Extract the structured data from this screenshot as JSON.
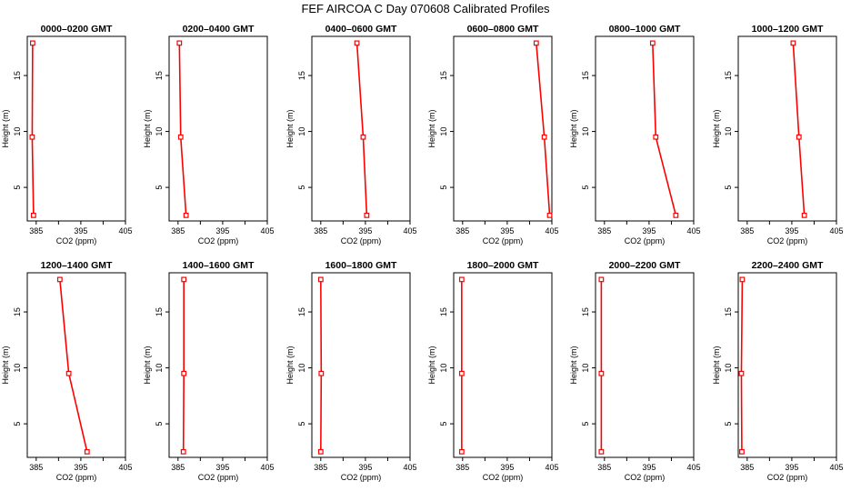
{
  "figure_title": "FEF AIRCOA C  Day 070608  Calibrated Profiles",
  "colors": {
    "series": "#ff0000",
    "axes": "#000000"
  },
  "chart_data": [
    {
      "type": "line",
      "title": "0000–0200 GMT",
      "xlabel": "CO2 (ppm)",
      "ylabel": "Height (m)",
      "xlim": [
        383,
        405
      ],
      "ylim": [
        2,
        18.5
      ],
      "xticks": [
        385,
        395,
        405
      ],
      "xtick_labels": [
        "385",
        "395",
        "405"
      ],
      "yticks": [
        5,
        10,
        15
      ],
      "ytick_labels": [
        "5",
        "10",
        "15"
      ],
      "series": [
        {
          "x": [
            384.2,
            384.1,
            384.4
          ],
          "y": [
            17.9,
            9.5,
            2.5
          ]
        }
      ]
    },
    {
      "type": "line",
      "title": "0200–0400 GMT",
      "xlabel": "CO2 (ppm)",
      "ylabel": "Height (m)",
      "xlim": [
        383,
        405
      ],
      "ylim": [
        2,
        18.5
      ],
      "xticks": [
        385,
        395,
        405
      ],
      "xtick_labels": [
        "385",
        "395",
        "405"
      ],
      "yticks": [
        5,
        10,
        15
      ],
      "ytick_labels": [
        "5",
        "10",
        "15"
      ],
      "series": [
        {
          "x": [
            385.3,
            385.6,
            386.8
          ],
          "y": [
            17.9,
            9.5,
            2.5
          ]
        }
      ]
    },
    {
      "type": "line",
      "title": "0400–0600 GMT",
      "xlabel": "CO2 (ppm)",
      "ylabel": "Height (m)",
      "xlim": [
        383,
        405
      ],
      "ylim": [
        2,
        18.5
      ],
      "xticks": [
        385,
        395,
        405
      ],
      "xtick_labels": [
        "385",
        "395",
        "405"
      ],
      "yticks": [
        5,
        10,
        15
      ],
      "ytick_labels": [
        "5",
        "10",
        "15"
      ],
      "series": [
        {
          "x": [
            393.1,
            394.5,
            395.3
          ],
          "y": [
            17.9,
            9.5,
            2.5
          ]
        }
      ]
    },
    {
      "type": "line",
      "title": "0600–0800 GMT",
      "xlabel": "CO2 (ppm)",
      "ylabel": "Height (m)",
      "xlim": [
        383,
        405
      ],
      "ylim": [
        2,
        18.5
      ],
      "xticks": [
        385,
        395,
        405
      ],
      "xtick_labels": [
        "385",
        "395",
        "405"
      ],
      "yticks": [
        5,
        10,
        15
      ],
      "ytick_labels": [
        "5",
        "10",
        "15"
      ],
      "series": [
        {
          "x": [
            401.5,
            403.3,
            404.5
          ],
          "y": [
            17.9,
            9.5,
            2.5
          ]
        }
      ]
    },
    {
      "type": "line",
      "title": "0800–1000 GMT",
      "xlabel": "CO2 (ppm)",
      "ylabel": "Height (m)",
      "xlim": [
        383,
        405
      ],
      "ylim": [
        2,
        18.5
      ],
      "xticks": [
        385,
        395,
        405
      ],
      "xtick_labels": [
        "385",
        "395",
        "405"
      ],
      "yticks": [
        5,
        10,
        15
      ],
      "ytick_labels": [
        "5",
        "10",
        "15"
      ],
      "series": [
        {
          "x": [
            395.8,
            396.5,
            401.0
          ],
          "y": [
            17.9,
            9.5,
            2.5
          ]
        }
      ]
    },
    {
      "type": "line",
      "title": "1000–1200 GMT",
      "xlabel": "CO2 (ppm)",
      "ylabel": "Height (m)",
      "xlim": [
        383,
        405
      ],
      "ylim": [
        2,
        18.5
      ],
      "xticks": [
        385,
        395,
        405
      ],
      "xtick_labels": [
        "385",
        "395",
        "405"
      ],
      "yticks": [
        5,
        10,
        15
      ],
      "ytick_labels": [
        "5",
        "10",
        "15"
      ],
      "series": [
        {
          "x": [
            395.3,
            396.6,
            397.8
          ],
          "y": [
            17.9,
            9.5,
            2.5
          ]
        }
      ]
    },
    {
      "type": "line",
      "title": "1200–1400 GMT",
      "xlabel": "CO2 (ppm)",
      "ylabel": "Height (m)",
      "xlim": [
        383,
        405
      ],
      "ylim": [
        2,
        18.5
      ],
      "xticks": [
        385,
        395,
        405
      ],
      "xtick_labels": [
        "385",
        "395",
        "405"
      ],
      "yticks": [
        5,
        10,
        15
      ],
      "ytick_labels": [
        "5",
        "10",
        "15"
      ],
      "series": [
        {
          "x": [
            390.3,
            392.3,
            396.4
          ],
          "y": [
            17.9,
            9.5,
            2.5
          ]
        }
      ]
    },
    {
      "type": "line",
      "title": "1400–1600 GMT",
      "xlabel": "CO2 (ppm)",
      "ylabel": "Height (m)",
      "xlim": [
        383,
        405
      ],
      "ylim": [
        2,
        18.5
      ],
      "xticks": [
        385,
        395,
        405
      ],
      "xtick_labels": [
        "385",
        "395",
        "405"
      ],
      "yticks": [
        5,
        10,
        15
      ],
      "ytick_labels": [
        "5",
        "10",
        "15"
      ],
      "series": [
        {
          "x": [
            386.3,
            386.3,
            386.2
          ],
          "y": [
            17.9,
            9.5,
            2.5
          ]
        }
      ]
    },
    {
      "type": "line",
      "title": "1600–1800 GMT",
      "xlabel": "CO2 (ppm)",
      "ylabel": "Height (m)",
      "xlim": [
        383,
        405
      ],
      "ylim": [
        2,
        18.5
      ],
      "xticks": [
        385,
        395,
        405
      ],
      "xtick_labels": [
        "385",
        "395",
        "405"
      ],
      "yticks": [
        5,
        10,
        15
      ],
      "ytick_labels": [
        "5",
        "10",
        "15"
      ],
      "series": [
        {
          "x": [
            385.0,
            385.1,
            385.0
          ],
          "y": [
            17.9,
            9.5,
            2.5
          ]
        }
      ]
    },
    {
      "type": "line",
      "title": "1800–2000 GMT",
      "xlabel": "CO2 (ppm)",
      "ylabel": "Height (m)",
      "xlim": [
        383,
        405
      ],
      "ylim": [
        2,
        18.5
      ],
      "xticks": [
        385,
        395,
        405
      ],
      "xtick_labels": [
        "385",
        "395",
        "405"
      ],
      "yticks": [
        5,
        10,
        15
      ],
      "ytick_labels": [
        "5",
        "10",
        "15"
      ],
      "series": [
        {
          "x": [
            384.8,
            384.8,
            384.8
          ],
          "y": [
            17.9,
            9.5,
            2.5
          ]
        }
      ]
    },
    {
      "type": "line",
      "title": "2000–2200 GMT",
      "xlabel": "CO2 (ppm)",
      "ylabel": "Height (m)",
      "xlim": [
        383,
        405
      ],
      "ylim": [
        2,
        18.5
      ],
      "xticks": [
        385,
        395,
        405
      ],
      "xtick_labels": [
        "385",
        "395",
        "405"
      ],
      "yticks": [
        5,
        10,
        15
      ],
      "ytick_labels": [
        "5",
        "10",
        "15"
      ],
      "series": [
        {
          "x": [
            384.3,
            384.3,
            384.3
          ],
          "y": [
            17.9,
            9.5,
            2.5
          ]
        }
      ]
    },
    {
      "type": "line",
      "title": "2200–2400 GMT",
      "xlabel": "CO2 (ppm)",
      "ylabel": "Height (m)",
      "xlim": [
        383,
        405
      ],
      "ylim": [
        2,
        18.5
      ],
      "xticks": [
        385,
        395,
        405
      ],
      "xtick_labels": [
        "385",
        "395",
        "405"
      ],
      "yticks": [
        5,
        10,
        15
      ],
      "ytick_labels": [
        "5",
        "10",
        "15"
      ],
      "series": [
        {
          "x": [
            383.9,
            383.7,
            383.8
          ],
          "y": [
            17.9,
            9.5,
            2.5
          ]
        }
      ]
    }
  ]
}
